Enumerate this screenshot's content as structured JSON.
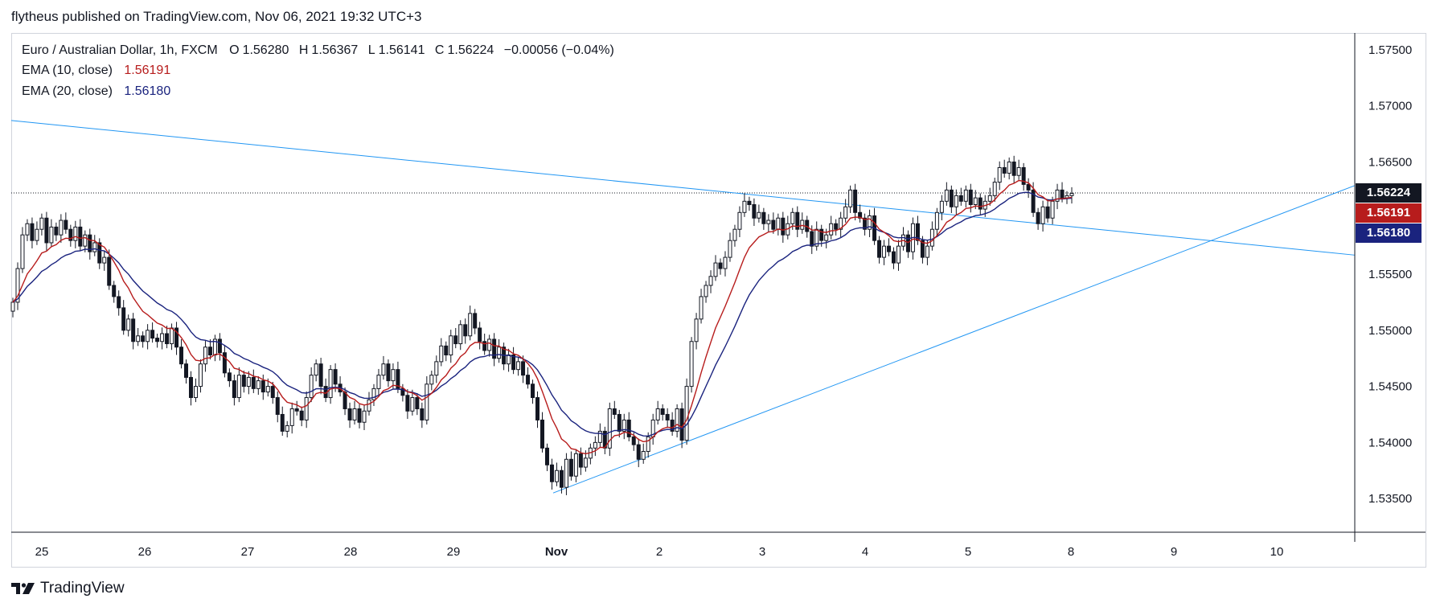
{
  "header": {
    "published_by": "flytheus published on TradingView.com, Nov 06, 2021 19:32 UTC+3"
  },
  "legend": {
    "symbol": "Euro / Australian Dollar, 1h, FXCM",
    "open_label": "O",
    "open": "1.56280",
    "high_label": "H",
    "high": "1.56367",
    "low_label": "L",
    "low": "1.56141",
    "close_label": "C",
    "close": "1.56224",
    "change": "−0.00056 (−0.04%)",
    "ema10_label": "EMA (10, close)",
    "ema10_value": "1.56191",
    "ema20_label": "EMA (20, close)",
    "ema20_value": "1.56180"
  },
  "price_tags": {
    "last": "1.56224",
    "ema10": "1.56191",
    "ema20": "1.56180"
  },
  "footer": {
    "brand": "TradingView"
  },
  "colors": {
    "ema10": "#b71c1c",
    "ema20": "#1a237e",
    "trendline": "#2196f3",
    "candle": "#131722",
    "last_tag_bg": "#131722",
    "ema10_tag_bg": "#b71c1c",
    "ema20_tag_bg": "#1a237e"
  },
  "chart_data": {
    "type": "candlestick",
    "x_tick_labels": [
      "25",
      "26",
      "27",
      "28",
      "29",
      "Nov",
      "2",
      "3",
      "4",
      "5",
      "8",
      "9",
      "10"
    ],
    "y_ticks": [
      1.535,
      1.54,
      1.545,
      1.55,
      1.555,
      1.56,
      1.565,
      1.57,
      1.575
    ],
    "y_tick_labels": [
      "1.53500",
      "1.54000",
      "1.54500",
      "1.55000",
      "1.55500",
      "1.56000",
      "1.56500",
      "1.57000",
      "1.57500"
    ],
    "ylim": [
      1.532,
      1.5765
    ],
    "last_price": 1.56224,
    "closes": [
      1.5525,
      1.5555,
      1.5585,
      1.5595,
      1.558,
      1.559,
      1.56,
      1.5578,
      1.5592,
      1.5585,
      1.5598,
      1.559,
      1.558,
      1.5592,
      1.5575,
      1.5585,
      1.557,
      1.5578,
      1.556,
      1.5565,
      1.554,
      1.553,
      1.552,
      1.55,
      1.551,
      1.549,
      1.5495,
      1.549,
      1.55,
      1.5493,
      1.549,
      1.5497,
      1.5488,
      1.5502,
      1.5485,
      1.547,
      1.5458,
      1.544,
      1.545,
      1.547,
      1.5485,
      1.5478,
      1.5492,
      1.548,
      1.5462,
      1.5455,
      1.544,
      1.546,
      1.545,
      1.5458,
      1.5448,
      1.5455,
      1.5445,
      1.545,
      1.544,
      1.5425,
      1.541,
      1.5415,
      1.543,
      1.5428,
      1.542,
      1.544,
      1.546,
      1.547,
      1.545,
      1.544,
      1.5465,
      1.5452,
      1.5445,
      1.543,
      1.542,
      1.543,
      1.5418,
      1.5428,
      1.5438,
      1.5448,
      1.546,
      1.547,
      1.5455,
      1.5465,
      1.5448,
      1.5442,
      1.5428,
      1.544,
      1.543,
      1.542,
      1.5452,
      1.546,
      1.5472,
      1.5486,
      1.5478,
      1.5495,
      1.5488,
      1.5505,
      1.5495,
      1.5515,
      1.5502,
      1.549,
      1.5482,
      1.5492,
      1.5475,
      1.5485,
      1.547,
      1.5478,
      1.5465,
      1.5472,
      1.546,
      1.5452,
      1.544,
      1.542,
      1.5395,
      1.538,
      1.5365,
      1.5375,
      1.536,
      1.5385,
      1.537,
      1.539,
      1.5378,
      1.5386,
      1.5395,
      1.54,
      1.541,
      1.5395,
      1.543,
      1.5425,
      1.541,
      1.542,
      1.5405,
      1.5398,
      1.5385,
      1.5392,
      1.5405,
      1.542,
      1.543,
      1.5425,
      1.542,
      1.541,
      1.543,
      1.5402,
      1.545,
      1.549,
      1.551,
      1.553,
      1.554,
      1.5548,
      1.556,
      1.5555,
      1.5565,
      1.558,
      1.559,
      1.5605,
      1.5615,
      1.5612,
      1.56,
      1.5605,
      1.5595,
      1.5598,
      1.559,
      1.56,
      1.5585,
      1.5595,
      1.5605,
      1.559,
      1.5598,
      1.5588,
      1.5575,
      1.559,
      1.558,
      1.5585,
      1.5595,
      1.559,
      1.56,
      1.561,
      1.5625,
      1.5605,
      1.56,
      1.559,
      1.5602,
      1.558,
      1.5565,
      1.5575,
      1.557,
      1.556,
      1.5575,
      1.5585,
      1.557,
      1.5595,
      1.558,
      1.5565,
      1.5575,
      1.559,
      1.5605,
      1.5615,
      1.5625,
      1.561,
      1.562,
      1.5615,
      1.5625,
      1.5612,
      1.5618,
      1.5608,
      1.5615,
      1.562,
      1.5632,
      1.5645,
      1.564,
      1.565,
      1.5638,
      1.5645,
      1.563,
      1.5625,
      1.5605,
      1.5595,
      1.561,
      1.56,
      1.5615,
      1.5625,
      1.5618,
      1.562,
      1.5622
    ]
  }
}
